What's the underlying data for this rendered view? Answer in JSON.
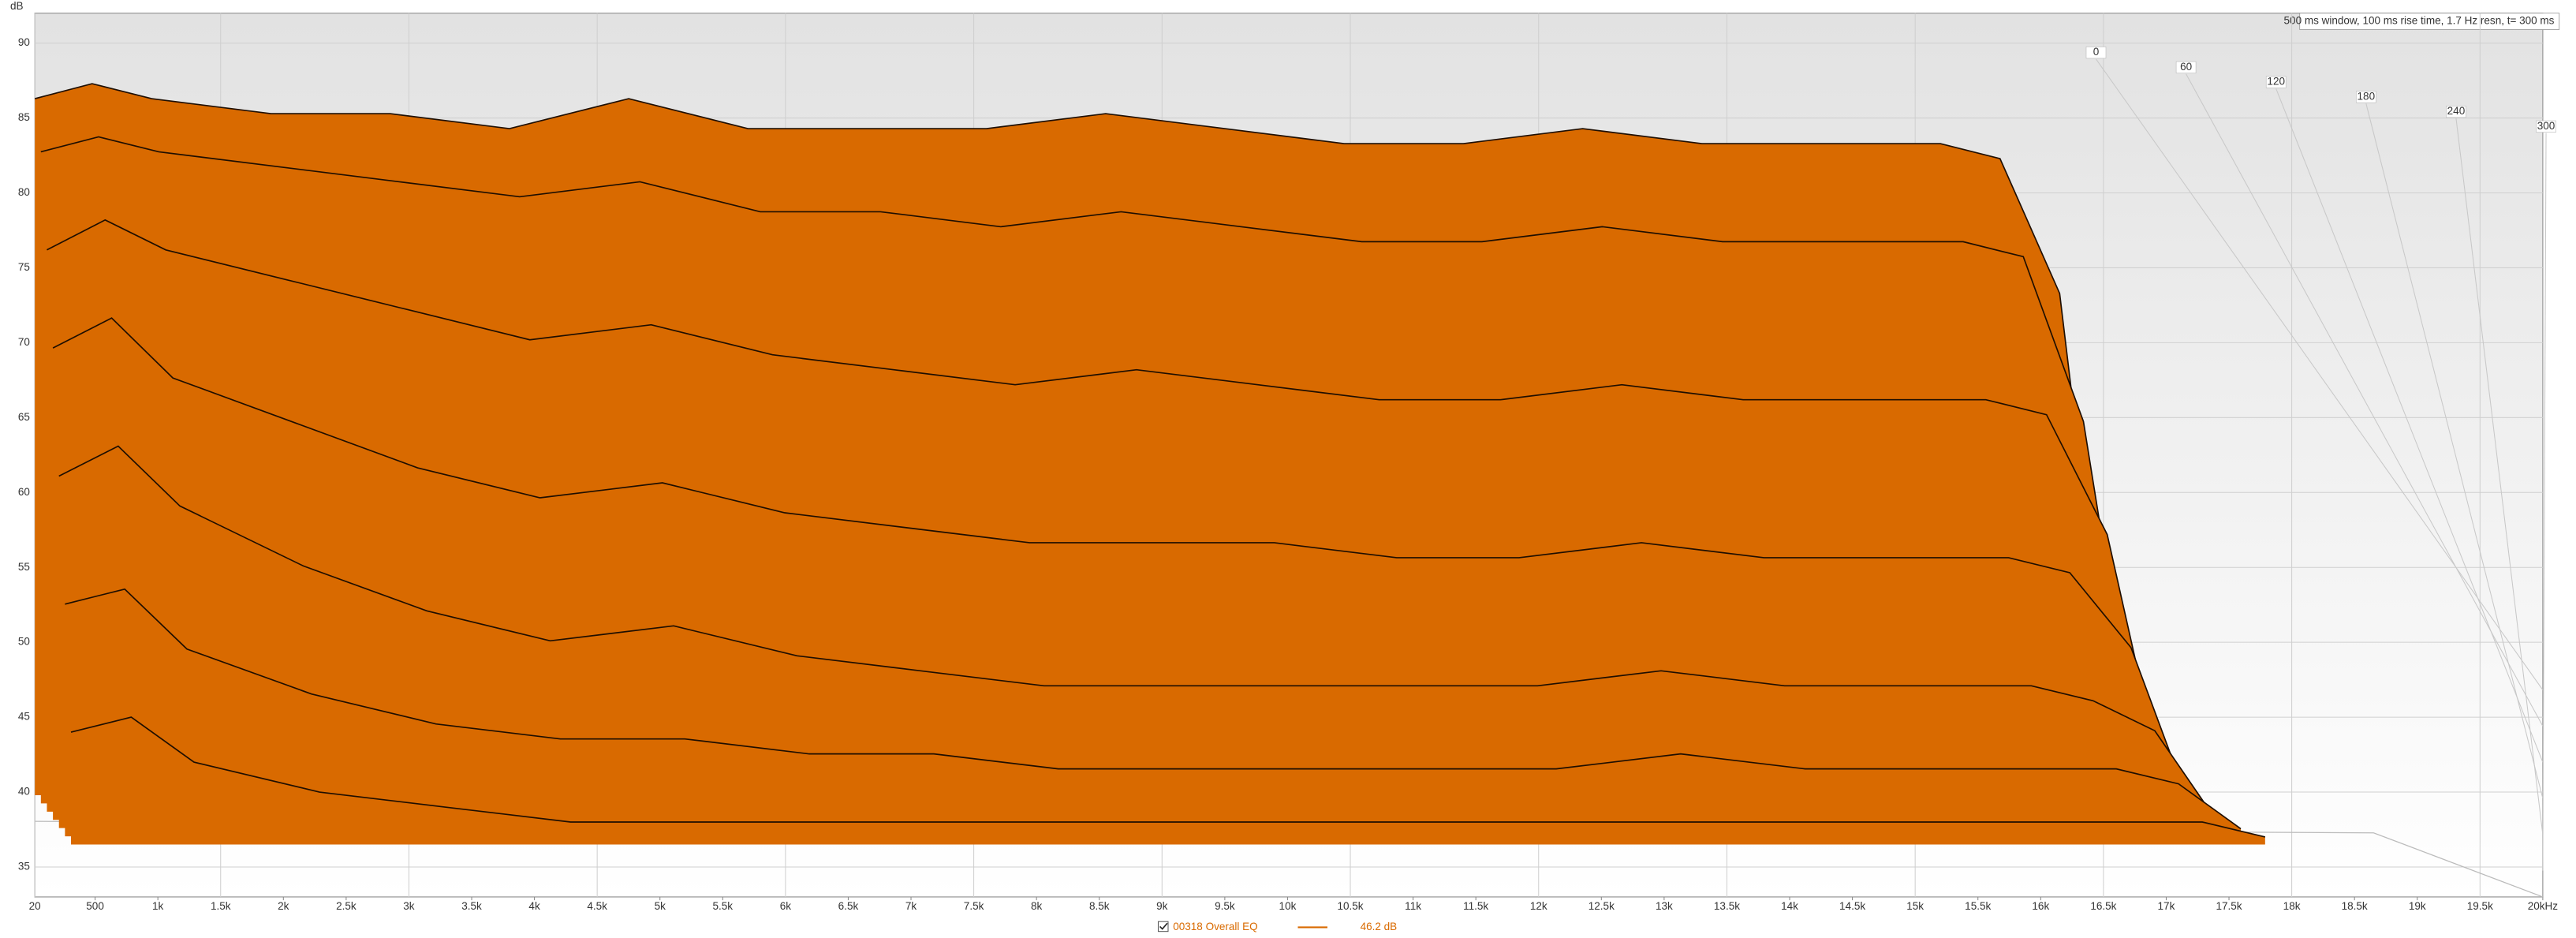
{
  "chart_data": {
    "type": "waterfall",
    "y_label": "dB",
    "info": "500 ms window, 100 ms rise time, 1.7 Hz resn, t= 300 ms",
    "xlim": [
      20,
      20000
    ],
    "ylim": [
      33,
      92
    ],
    "yticks": [
      35,
      40,
      45,
      50,
      55,
      60,
      65,
      70,
      75,
      80,
      85,
      90
    ],
    "xticks": [
      20,
      500,
      {
        "value": 1000,
        "label": "1k"
      },
      {
        "value": 1500,
        "label": "1.5k"
      },
      {
        "value": 2000,
        "label": "2k"
      },
      {
        "value": 2500,
        "label": "2.5k"
      },
      {
        "value": 3000,
        "label": "3k"
      },
      {
        "value": 3500,
        "label": "3.5k"
      },
      {
        "value": 4000,
        "label": "4k"
      },
      {
        "value": 4500,
        "label": "4.5k"
      },
      {
        "value": 5000,
        "label": "5k"
      },
      {
        "value": 5500,
        "label": "5.5k"
      },
      {
        "value": 6000,
        "label": "6k"
      },
      {
        "value": 6500,
        "label": "6.5k"
      },
      {
        "value": 7000,
        "label": "7k"
      },
      {
        "value": 7500,
        "label": "7.5k"
      },
      {
        "value": 8000,
        "label": "8k"
      },
      {
        "value": 8500,
        "label": "8.5k"
      },
      {
        "value": 9000,
        "label": "9k"
      },
      {
        "value": 9500,
        "label": "9.5k"
      },
      {
        "value": 10000,
        "label": "10k"
      },
      {
        "value": 10500,
        "label": "10.5k"
      },
      {
        "value": 11000,
        "label": "11k"
      },
      {
        "value": 11500,
        "label": "11.5k"
      },
      {
        "value": 12000,
        "label": "12k"
      },
      {
        "value": 12500,
        "label": "12.5k"
      },
      {
        "value": 13000,
        "label": "13k"
      },
      {
        "value": 13500,
        "label": "13.5k"
      },
      {
        "value": 14000,
        "label": "14k"
      },
      {
        "value": 14500,
        "label": "14.5k"
      },
      {
        "value": 15000,
        "label": "15k"
      },
      {
        "value": 15500,
        "label": "15.5k"
      },
      {
        "value": 16000,
        "label": "16k"
      },
      {
        "value": 16500,
        "label": "16.5k"
      },
      {
        "value": 17000,
        "label": "17k"
      },
      {
        "value": 17500,
        "label": "17.5k"
      },
      {
        "value": 18000,
        "label": "18k"
      },
      {
        "value": 18500,
        "label": "18.5k"
      },
      {
        "value": 19000,
        "label": "19k"
      },
      {
        "value": 19500,
        "label": "19.5k"
      },
      {
        "value": 20000,
        "label": "20kHz"
      }
    ],
    "tlim": [
      0,
      300
    ],
    "tticks": [
      0,
      60,
      120,
      180,
      240,
      300
    ],
    "x": [
      20,
      500,
      1000,
      2000,
      3000,
      4000,
      5000,
      6000,
      7000,
      8000,
      9000,
      10000,
      11000,
      12000,
      13000,
      14000,
      15000,
      16000,
      16500,
      17000,
      17500
    ],
    "color": "#d96a00",
    "slices": [
      {
        "t": 0,
        "values": [
          83,
          84,
          83,
          82,
          82,
          81,
          83,
          81,
          81,
          81,
          82,
          81,
          80,
          80,
          81,
          80,
          80,
          80,
          79,
          70,
          37
        ]
      },
      {
        "t": 50,
        "values": [
          80,
          81,
          80,
          79,
          78,
          77,
          78,
          76,
          76,
          75,
          76,
          75,
          74,
          74,
          75,
          74,
          74,
          74,
          73,
          62,
          37
        ]
      },
      {
        "t": 100,
        "values": [
          74,
          76,
          74,
          72,
          70,
          68,
          69,
          67,
          66,
          65,
          66,
          65,
          64,
          64,
          65,
          64,
          64,
          64,
          63,
          55,
          37
        ]
      },
      {
        "t": 150,
        "values": [
          68,
          70,
          66,
          63,
          60,
          58,
          59,
          57,
          56,
          55,
          55,
          55,
          54,
          54,
          55,
          54,
          54,
          54,
          53,
          48,
          37
        ]
      },
      {
        "t": 200,
        "values": [
          60,
          62,
          58,
          54,
          51,
          49,
          50,
          48,
          47,
          46,
          46,
          46,
          46,
          46,
          47,
          46,
          46,
          46,
          45,
          43,
          37
        ]
      },
      {
        "t": 250,
        "values": [
          52,
          53,
          49,
          46,
          44,
          43,
          43,
          42,
          42,
          41,
          41,
          41,
          41,
          41,
          42,
          41,
          41,
          41,
          41,
          40,
          37
        ]
      },
      {
        "t": 300,
        "values": [
          44,
          45,
          42,
          40,
          39,
          38,
          38,
          38,
          38,
          38,
          38,
          38,
          38,
          38,
          38,
          38,
          38,
          38,
          38,
          38,
          37
        ]
      }
    ],
    "legend": {
      "name": "00318 Overall EQ",
      "level": "46.2 dB"
    }
  }
}
